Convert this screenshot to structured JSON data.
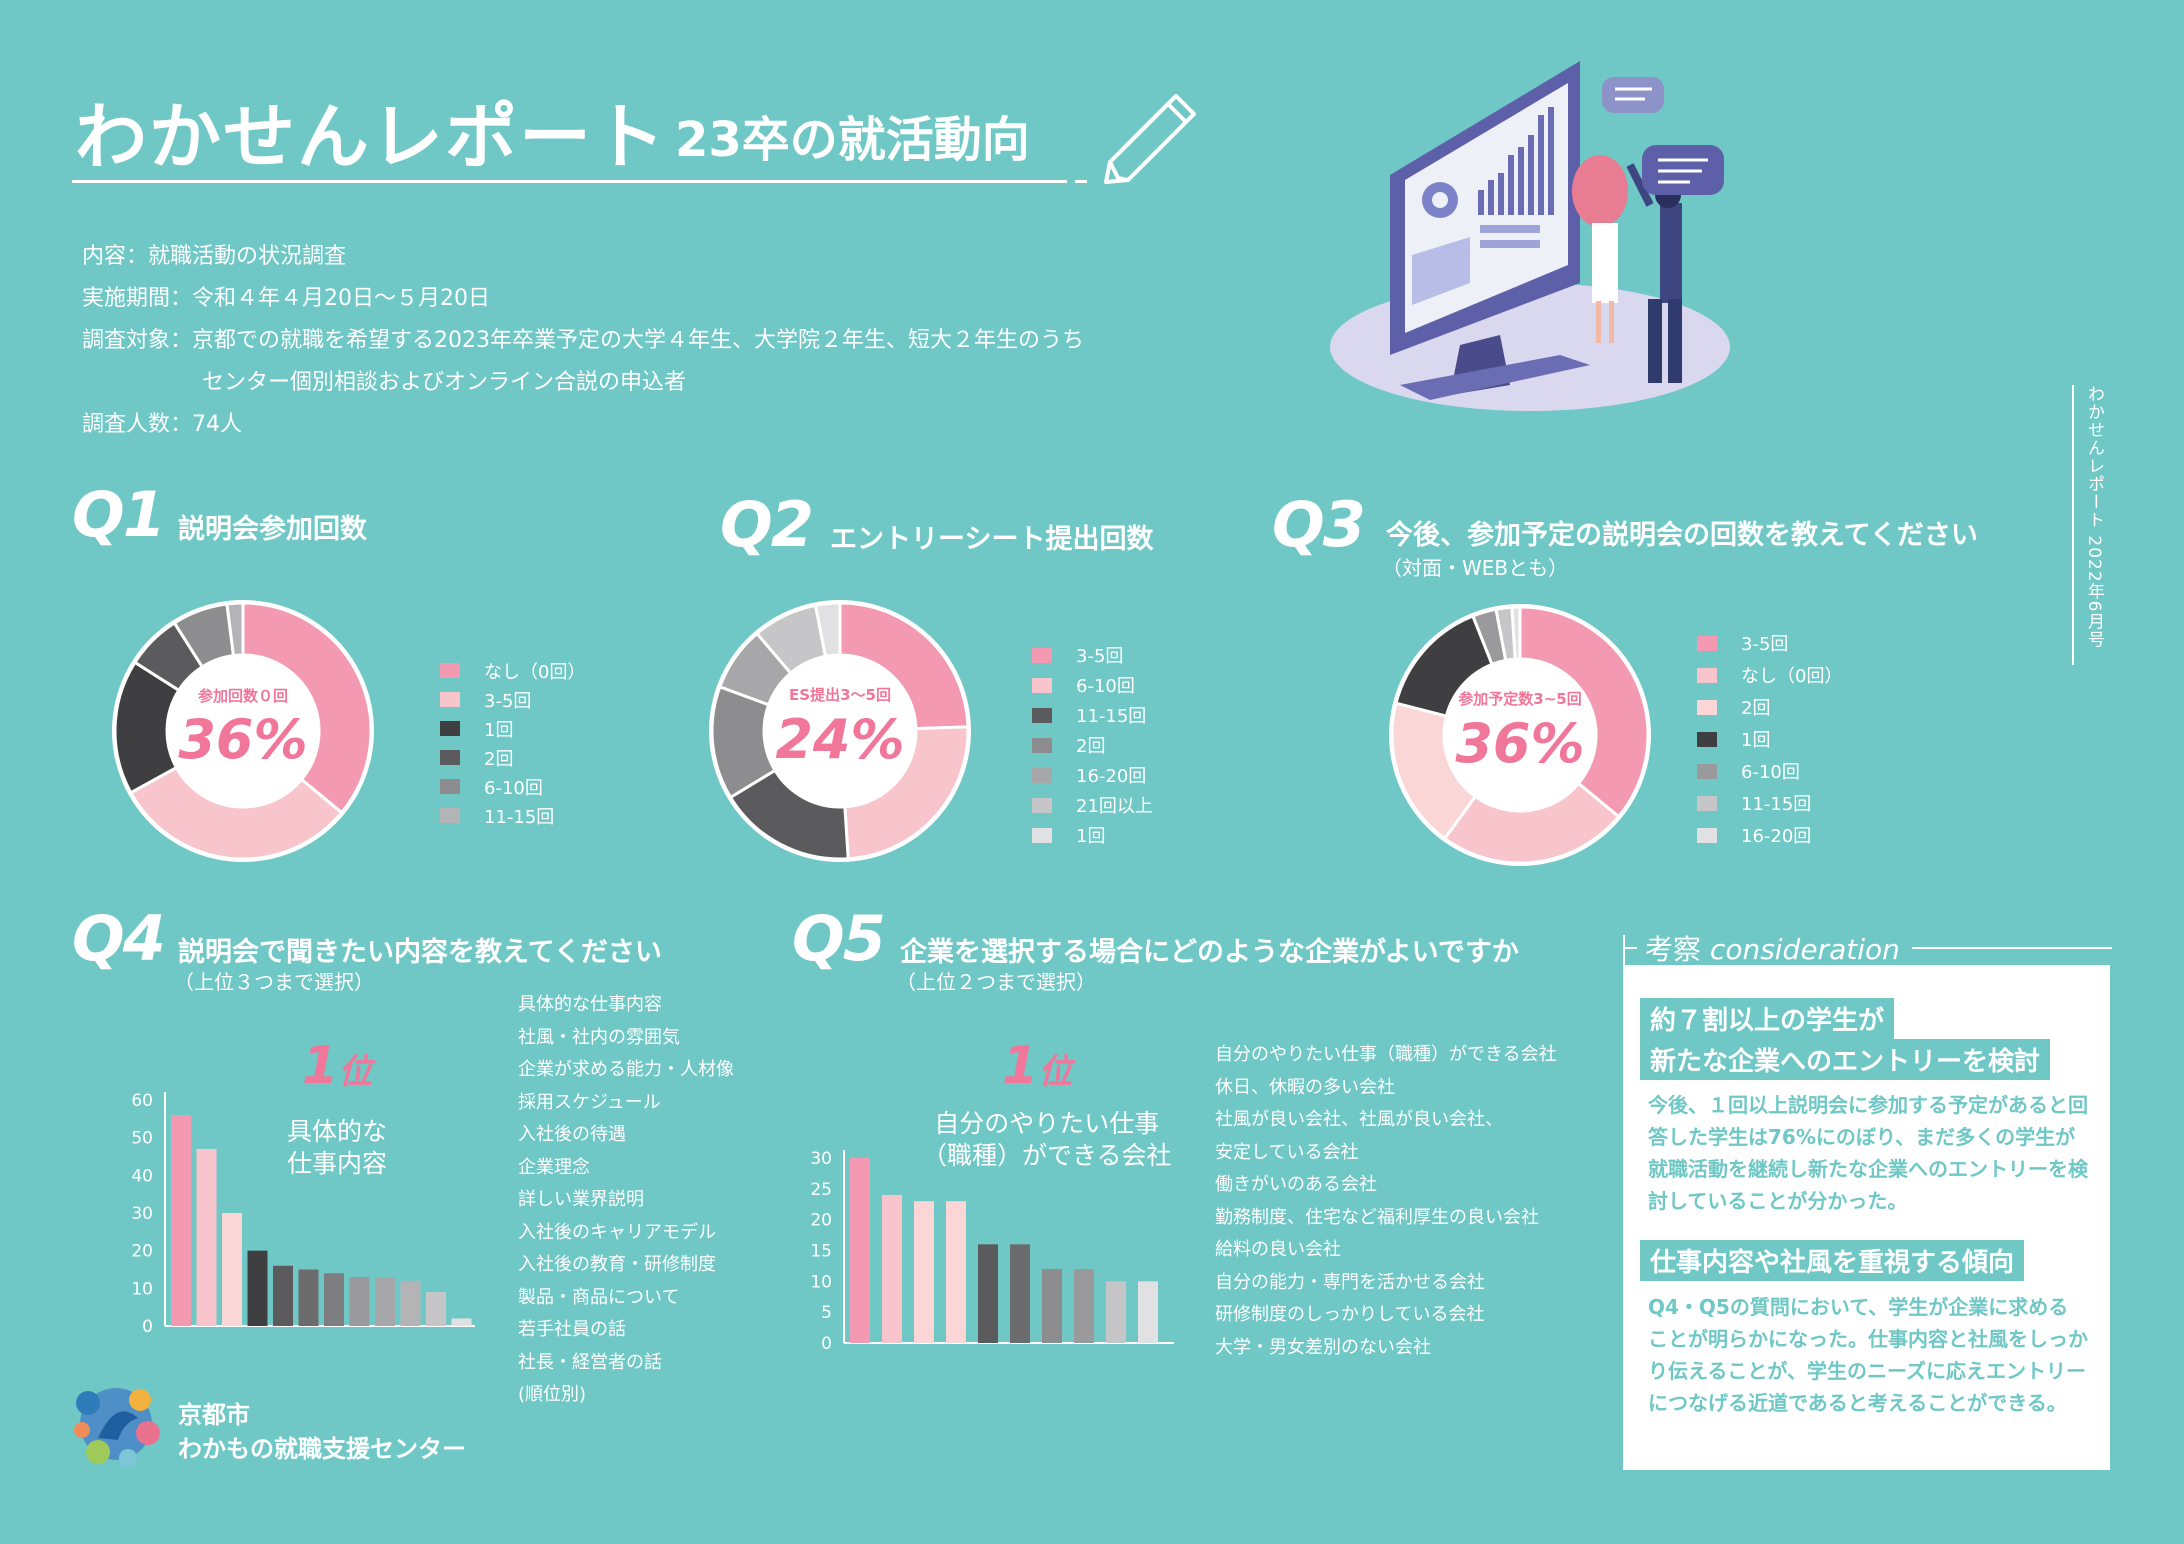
{
  "header": {
    "title": "わかせんレポート",
    "subtitle": "23卒の就活動向",
    "vertical_label": "わかせんレポート 2022年6月号"
  },
  "info": {
    "content_label": "内容：",
    "content": "就職活動の状況調査",
    "period_label": "実施期間：",
    "period": "令和４年４月20日～５月20日",
    "target_label": "調査対象：",
    "target_line1": "京都での就職を希望する2023年卒業予定の大学４年生、大学院２年生、短大２年生のうち",
    "target_line2": "センター個別相談およびオンライン合説の申込者",
    "count_label": "調査人数：",
    "count": "74人"
  },
  "q1": {
    "label": "Q1",
    "title": "説明会参加回数",
    "center_label": "参加回数０回",
    "center_value": "36%"
  },
  "q2": {
    "label": "Q2",
    "title": "エントリーシート提出回数",
    "center_label": "ES提出3～5回",
    "center_value": "24%"
  },
  "q3": {
    "label": "Q3",
    "title": "今後、参加予定の説明会の回数を教えてください",
    "subtitle": "（対面・WEBとも）",
    "center_label": "参加予定数3~5回",
    "center_value": "36%"
  },
  "q4": {
    "label": "Q4",
    "title": "説明会で聞きたい内容を教えてください",
    "subtitle": "（上位３つまで選択）",
    "rank_label": "1",
    "rank_suffix": "位",
    "rank_desc_line1": "具体的な",
    "rank_desc_line2": "仕事内容",
    "items": [
      "具体的な仕事内容",
      "社風・社内の雰囲気",
      "企業が求める能力・人材像",
      "採用スケジュール",
      "入社後の待遇",
      "企業理念",
      "詳しい業界説明",
      "入社後のキャリアモデル",
      "入社後の教育・研修制度",
      "製品・商品について",
      "若手社員の話",
      "社長・経営者の話",
      "(順位別)"
    ]
  },
  "q5": {
    "label": "Q5",
    "title": "企業を選択する場合にどのような企業がよいですか",
    "subtitle": "（上位２つまで選択）",
    "rank_label": "1",
    "rank_suffix": "位",
    "rank_desc_line1": "自分のやりたい仕事",
    "rank_desc_line2": "（職種）ができる会社",
    "items": [
      "自分のやりたい仕事（職種）ができる会社",
      "休日、休暇の多い会社",
      "社風が良い会社、社風が良い会社、",
      "安定している会社",
      "働きがいのある会社",
      "勤務制度、住宅など福利厚生の良い会社",
      "給料の良い会社",
      "自分の能力・専門を活かせる会社",
      "研修制度のしっかりしている会社",
      "大学・男女差別のない会社"
    ]
  },
  "consideration": {
    "heading_jp": "考察",
    "heading_en": "consideration",
    "h1_line1": "約７割以上の学生が",
    "h1_line2": "新たな企業へのエントリーを検討",
    "p1": "今後、１回以上説明会に参加する予定があると回答した学生は76%にのぼり、まだ多くの学生が就職活動を継続し新たな企業へのエントリーを検討していることが分かった。",
    "h2": "仕事内容や社風を重視する傾向",
    "p2": "Q4・Q5の質問において、学生が企業に求めることが明らかになった。仕事内容と社風をしっかり伝えることが、学生のニーズに応えエントリーにつなげる近道であると考えることができる。"
  },
  "logo": {
    "line1": "京都市",
    "line2": "わかもの就職支援センター"
  },
  "chart_data": [
    {
      "type": "pie",
      "title": "説明会参加回数",
      "labels": [
        "なし（0回）",
        "3-5回",
        "1回",
        "2回",
        "6-10回",
        "11-15回"
      ],
      "values": [
        36,
        31,
        17,
        7,
        7,
        2
      ],
      "colors": [
        "#f39ab2",
        "#f8c5cc",
        "#3f3f42",
        "#5b5b5e",
        "#8d8d8f",
        "#b4b4b6"
      ]
    },
    {
      "type": "pie",
      "title": "エントリーシート提出回数",
      "labels": [
        "3-5回",
        "6-10回",
        "11-15回",
        "2回",
        "16-20回",
        "21回以上",
        "1回"
      ],
      "values": [
        24,
        24,
        17,
        14,
        8,
        8,
        3
      ],
      "colors": [
        "#f39ab2",
        "#f8c5cc",
        "#5b5b5e",
        "#8d8d8f",
        "#a7a7a9",
        "#c6c6c8",
        "#e1e1e3"
      ]
    },
    {
      "type": "pie",
      "title": "今後、参加予定の説明会の回数を教えてください",
      "labels": [
        "3-5回",
        "なし（0回）",
        "2回",
        "1回",
        "6-10回",
        "11-15回",
        "16-20回"
      ],
      "values": [
        36,
        24,
        19,
        15,
        3,
        2,
        1
      ],
      "colors": [
        "#f39ab2",
        "#f8c5cc",
        "#fad6d6",
        "#3f3f42",
        "#9a9a9c",
        "#c6c6c8",
        "#e1e1e3"
      ]
    },
    {
      "type": "bar",
      "title": "説明会で聞きたい内容を教えてください",
      "categories": [
        "具体的な仕事内容",
        "社風・社内の雰囲気",
        "企業が求める能力・人材像",
        "採用スケジュール",
        "入社後の待遇",
        "企業理念",
        "詳しい業界説明",
        "入社後のキャリアモデル",
        "入社後の教育・研修制度",
        "製品・商品について",
        "若手社員の話",
        "社長・経営者の話"
      ],
      "values": [
        56,
        47,
        30,
        20,
        16,
        15,
        14,
        13,
        13,
        12,
        9,
        2
      ],
      "colors": [
        "#f39ab2",
        "#f8c5cc",
        "#fad6d6",
        "#3f3f42",
        "#5b5b5e",
        "#6c6c6e",
        "#7e7e80",
        "#9a9a9c",
        "#a7a7a9",
        "#b4b4b6",
        "#c6c6c8",
        "#e1e1e3"
      ],
      "yticks": [
        "0",
        "10",
        "20",
        "30",
        "40",
        "50",
        "60"
      ],
      "ylim": [
        0,
        60
      ]
    },
    {
      "type": "bar",
      "title": "企業を選択する場合にどのような企業がよいですか",
      "categories": [
        "自分のやりたい仕事（職種）ができる会社",
        "休日、休暇の多い会社",
        "社風が良い会社、社風が良い会社、",
        "安定している会社",
        "働きがいのある会社",
        "勤務制度、住宅など福利厚生の良い会社",
        "給料の良い会社",
        "自分の能力・専門を活かせる会社",
        "研修制度のしっかりしている会社",
        "大学・男女差別のない会社"
      ],
      "values": [
        30,
        24,
        23,
        23,
        16,
        16,
        12,
        12,
        10,
        10
      ],
      "colors": [
        "#f39ab2",
        "#f8c5cc",
        "#fad6d6",
        "#fad6d6",
        "#5b5b5e",
        "#6c6c6e",
        "#8d8d8f",
        "#9a9a9c",
        "#c6c6c8",
        "#e1e1e3"
      ],
      "yticks": [
        "0",
        "5",
        "10",
        "15",
        "20",
        "25",
        "30"
      ],
      "ylim": [
        0,
        30
      ]
    }
  ]
}
